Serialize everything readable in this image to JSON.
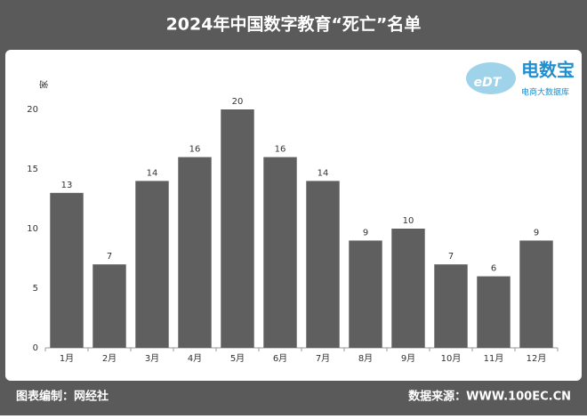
{
  "chart_data": {
    "type": "bar",
    "title": "2024年中国数字教育“死亡”名单",
    "y_label": "家",
    "categories": [
      "1月",
      "2月",
      "3月",
      "4月",
      "5月",
      "6月",
      "7月",
      "8月",
      "9月",
      "10月",
      "11月",
      "12月"
    ],
    "values": [
      13,
      7,
      14,
      16,
      20,
      16,
      14,
      9,
      10,
      7,
      6,
      9
    ],
    "color": "#5f5f5f",
    "ylim": [
      0,
      20
    ],
    "yticks": [
      0,
      5,
      10,
      15,
      20
    ],
    "grid": false,
    "logo": {
      "mark": "eDT",
      "name": "电数宝",
      "tagline": "电商大数据库"
    },
    "footer": {
      "left": "图表编制：网经社",
      "right": "数据来源：WWW.100EC.CN"
    }
  }
}
